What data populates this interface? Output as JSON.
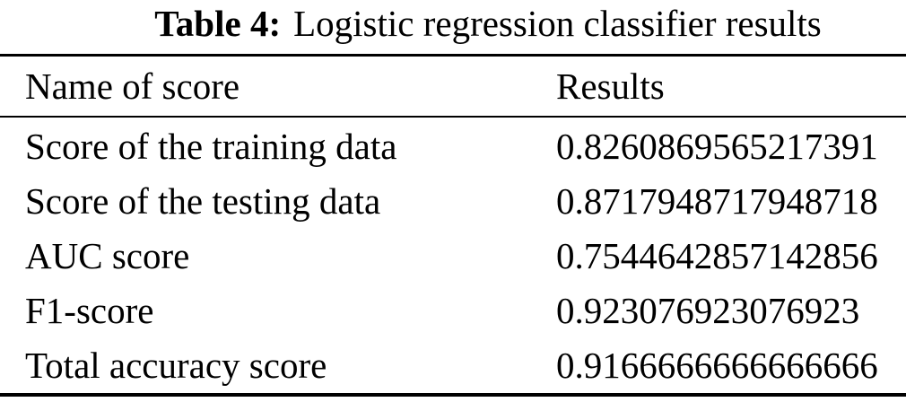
{
  "caption": {
    "label": "Table 4:",
    "text": "Logistic regression classifier results"
  },
  "table": {
    "columns": [
      "Name of score",
      "Results"
    ],
    "rows": [
      {
        "name": "Score of the training data",
        "result": "0.8260869565217391"
      },
      {
        "name": "Score of the testing data",
        "result": "0.8717948717948718"
      },
      {
        "name": "AUC score",
        "result": "0.7544642857142856"
      },
      {
        "name": "F1-score",
        "result": "0.923076923076923"
      },
      {
        "name": "Total accuracy score",
        "result": "0.9166666666666666"
      }
    ]
  },
  "colors": {
    "text": "#000000",
    "background": "#ffffff",
    "rule": "#000000"
  }
}
